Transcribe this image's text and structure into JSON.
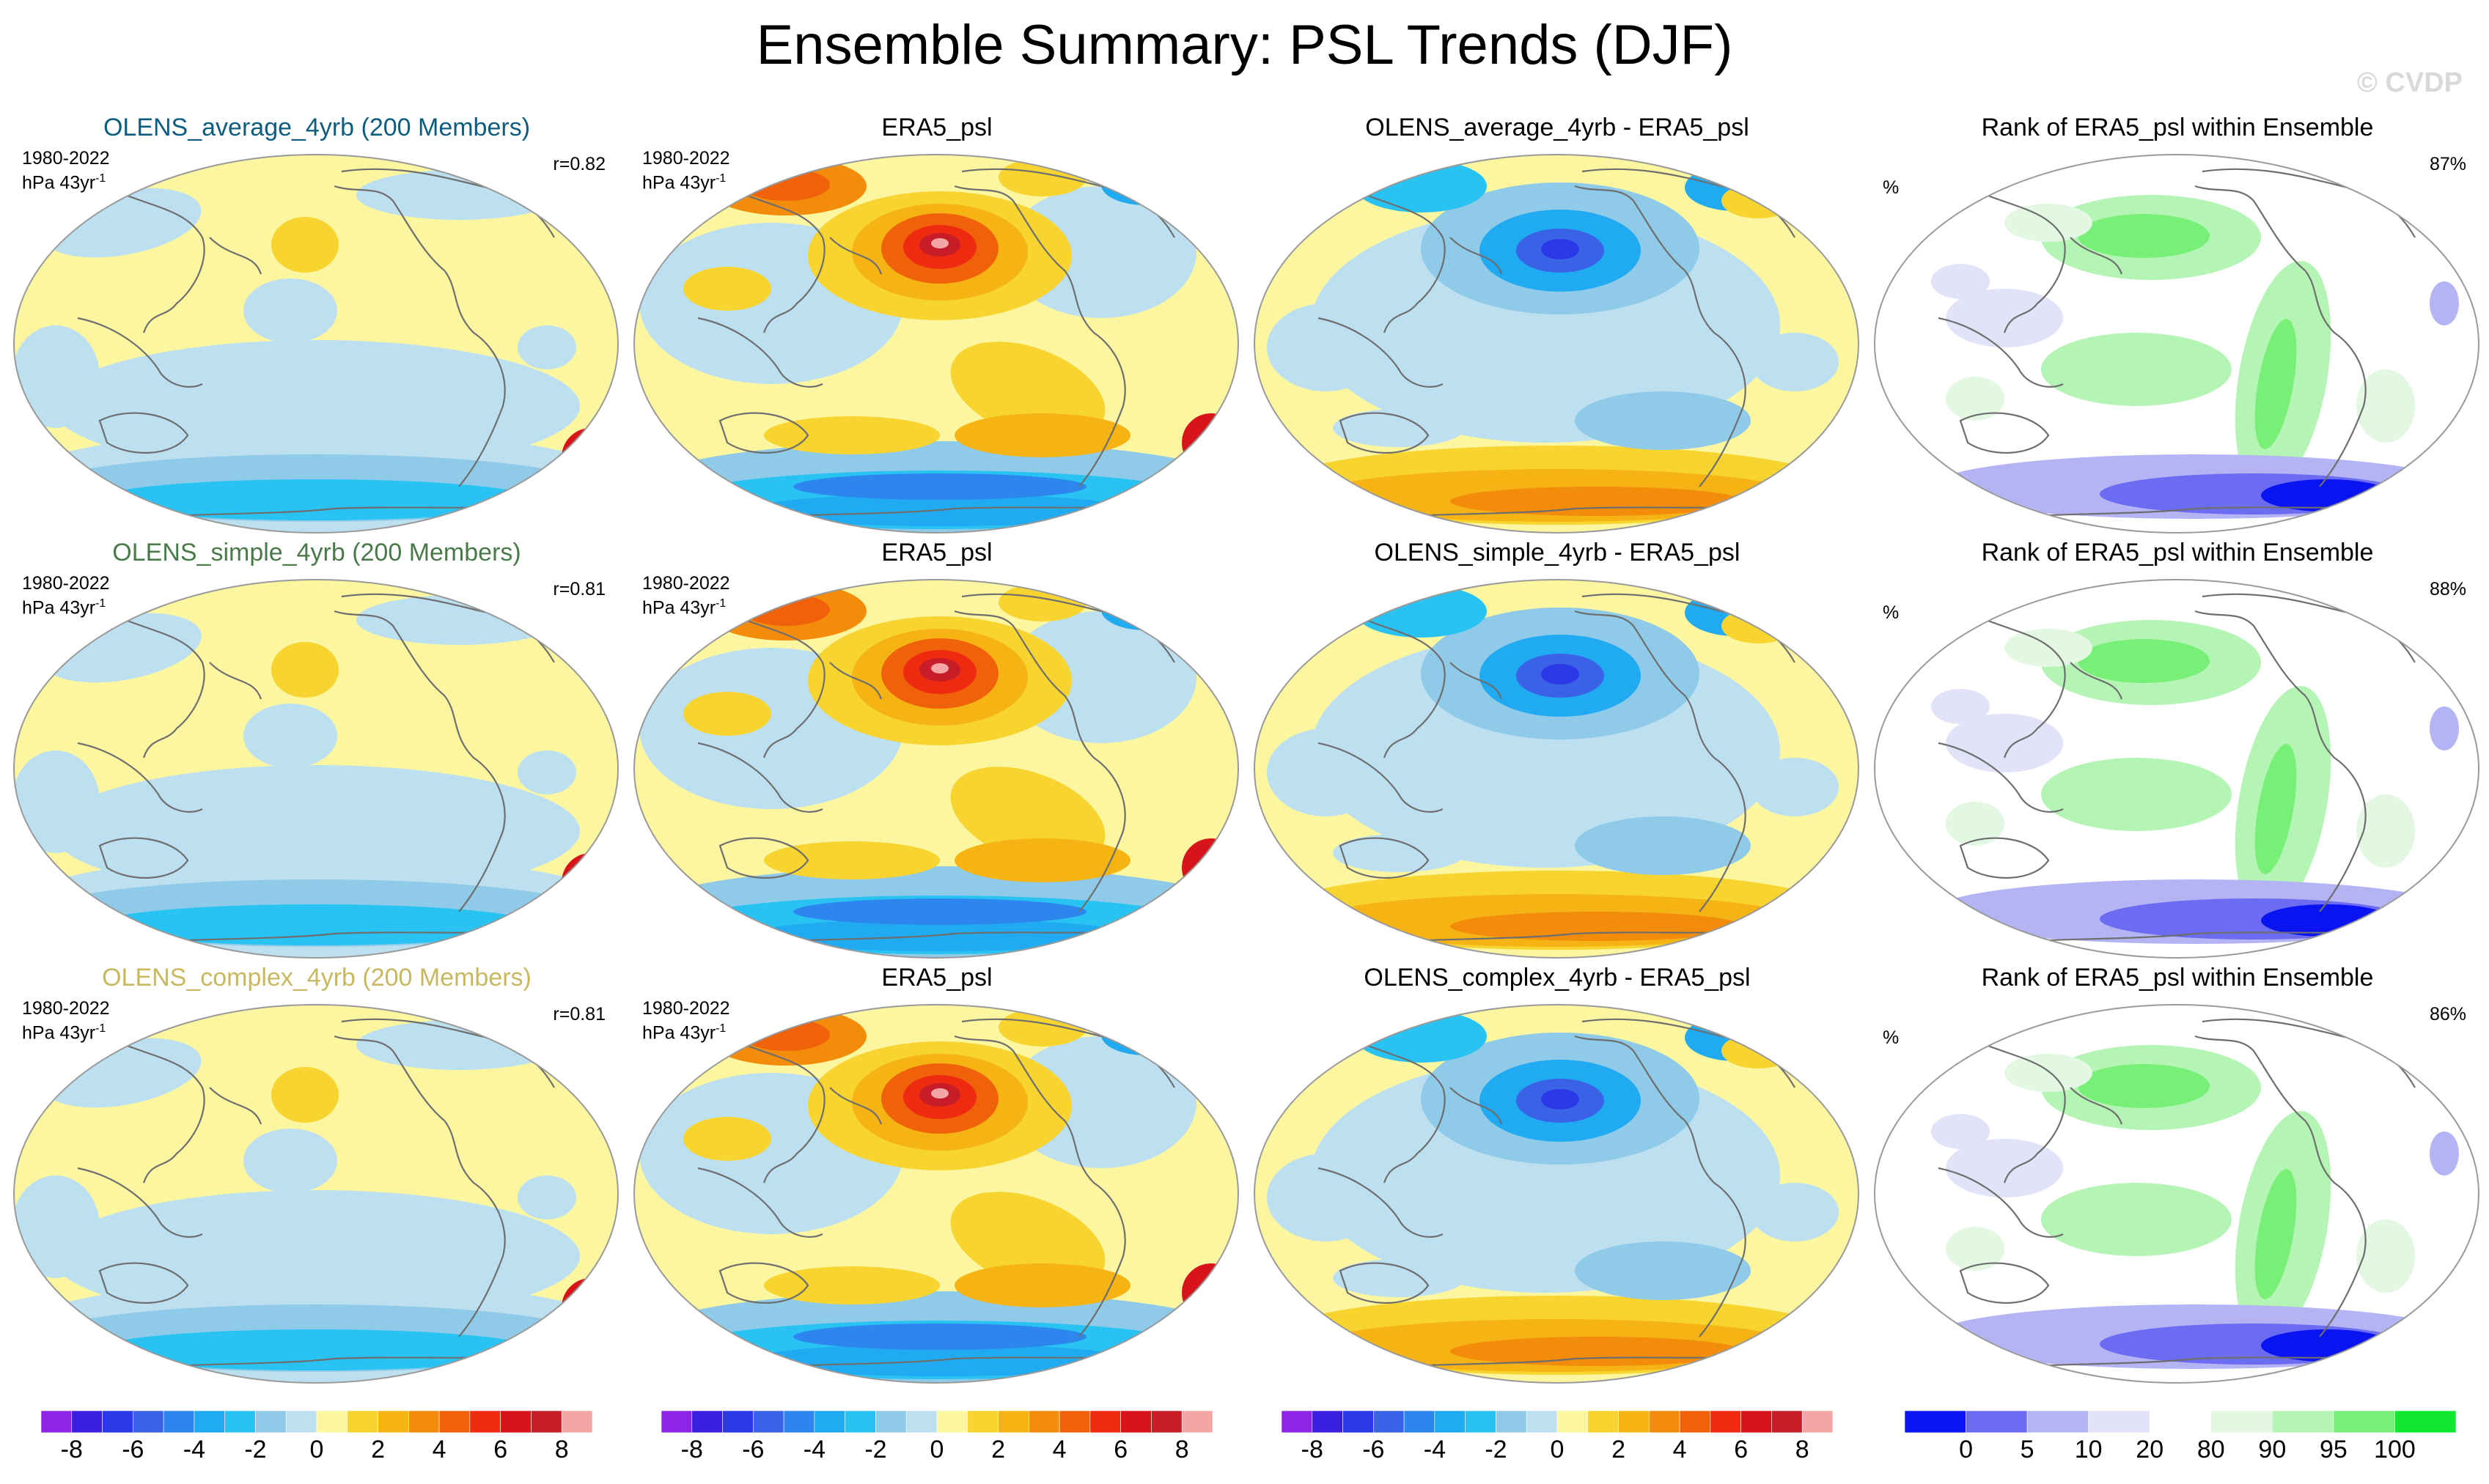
{
  "title": "Ensemble Summary: PSL Trends (DJF)",
  "watermark": "© CVDP",
  "colors": {
    "psl_scale": [
      "#8e24e6",
      "#3a1fe0",
      "#2a38e8",
      "#3a62e6",
      "#2c86ee",
      "#1faaf2",
      "#28c3f2",
      "#8fcae8",
      "#bde0f0",
      "#fcf6a0",
      "#f8d430",
      "#f6b414",
      "#f28c0a",
      "#f0620a",
      "#ee2a10",
      "#d8141a",
      "#c81c28",
      "#f4a6a6"
    ],
    "rank_scale": [
      "#0a14f0",
      "#6c6cf2",
      "#b4b4f4",
      "#e2e2f8",
      "#ffffff",
      "#e2f8e2",
      "#b4f4b4",
      "#78f078",
      "#10e830"
    ],
    "coast": "#6e6e6e",
    "outline": "#9a9a9a"
  },
  "panels": [
    {
      "title": "OLENS_average_4yrb (200 Members)",
      "title_color": "#0d5d80",
      "period": "1980-2022",
      "units_base": "hPa 43yr",
      "units_exp": "-1",
      "r": "r=0.82",
      "kind": "model"
    },
    {
      "title": "ERA5_psl",
      "title_color": "#000000",
      "period": "1980-2022",
      "units_base": "hPa 43yr",
      "units_exp": "-1",
      "kind": "obs"
    },
    {
      "title": "OLENS_average_4yrb - ERA5_psl",
      "title_color": "#000000",
      "kind": "diff"
    },
    {
      "title": "Rank of ERA5_psl within Ensemble",
      "title_color": "#000000",
      "pct": "%",
      "rank_value": "87%",
      "kind": "rank"
    },
    {
      "title": "OLENS_simple_4yrb (200 Members)",
      "title_color": "#4a7a4a",
      "period": "1980-2022",
      "units_base": "hPa 43yr",
      "units_exp": "-1",
      "r": "r=0.81",
      "kind": "model"
    },
    {
      "title": "ERA5_psl",
      "title_color": "#000000",
      "period": "1980-2022",
      "units_base": "hPa 43yr",
      "units_exp": "-1",
      "kind": "obs"
    },
    {
      "title": "OLENS_simple_4yrb - ERA5_psl",
      "title_color": "#000000",
      "kind": "diff"
    },
    {
      "title": "Rank of ERA5_psl within Ensemble",
      "title_color": "#000000",
      "pct": "%",
      "rank_value": "88%",
      "kind": "rank"
    },
    {
      "title": "OLENS_complex_4yrb (200 Members)",
      "title_color": "#c8b860",
      "period": "1980-2022",
      "units_base": "hPa 43yr",
      "units_exp": "-1",
      "r": "r=0.81",
      "kind": "model"
    },
    {
      "title": "ERA5_psl",
      "title_color": "#000000",
      "period": "1980-2022",
      "units_base": "hPa 43yr",
      "units_exp": "-1",
      "kind": "obs"
    },
    {
      "title": "OLENS_complex_4yrb - ERA5_psl",
      "title_color": "#000000",
      "kind": "diff"
    },
    {
      "title": "Rank of ERA5_psl within Ensemble",
      "title_color": "#000000",
      "pct": "%",
      "rank_value": "86%",
      "kind": "rank"
    }
  ],
  "colorbars": [
    {
      "labels": [
        "-8",
        "-6",
        "-4",
        "-2",
        "0",
        "2",
        "4",
        "6",
        "8"
      ],
      "kind": "psl"
    },
    {
      "labels": [
        "-8",
        "-6",
        "-4",
        "-2",
        "0",
        "2",
        "4",
        "6",
        "8"
      ],
      "kind": "psl"
    },
    {
      "labels": [
        "-8",
        "-6",
        "-4",
        "-2",
        "0",
        "2",
        "4",
        "6",
        "8"
      ],
      "kind": "psl"
    },
    {
      "labels": [
        "0",
        "5",
        "10",
        "20",
        "80",
        "90",
        "95",
        "100"
      ],
      "kind": "rank"
    }
  ]
}
